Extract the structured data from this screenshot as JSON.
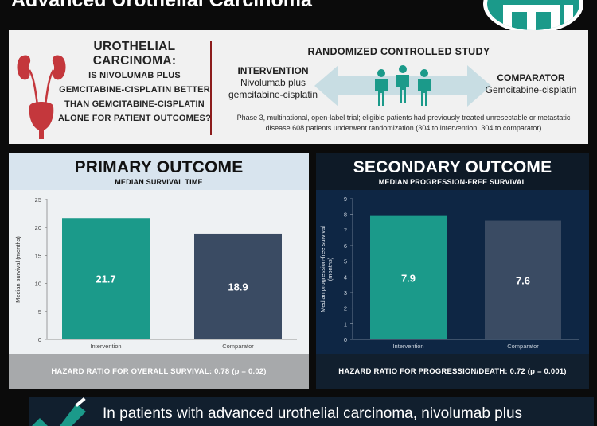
{
  "header": {
    "title": "Advanced Urothelial Carcinoma"
  },
  "study": {
    "question_title": "UROTHELIAL CARCINOMA:",
    "question_body": "IS NIVOLUMAB PLUS GEMCITABINE-CISPLATIN BETTER THAN GEMCITABINE-CISPLATIN ALONE FOR PATIENT OUTCOMES?",
    "design_label": "RANDOMIZED CONTROLLED STUDY",
    "intervention_label": "INTERVENTION",
    "intervention_text": "Nivolumab plus gemcitabine-cisplatin",
    "comparator_label": "COMPARATOR",
    "comparator_text": "Gemcitabine-cisplatin",
    "description": "Phase 3, multinational, open-label trial; eligible patients had previously treated unresectable or metastatic disease 608 patients underwent randomization (304 to intervention, 304 to comparator)"
  },
  "primary": {
    "title": "PRIMARY OUTCOME",
    "subtitle": "MEDIAN SURVIVAL TIME",
    "footer": "HAZARD RATIO FOR OVERALL SURVIVAL: 0.78 (p = 0.02)"
  },
  "secondary": {
    "title": "SECONDARY OUTCOME",
    "subtitle": "MEDIAN PROGRESSION-FREE SURVIVAL",
    "footer": "HAZARD RATIO FOR PROGRESSION/DEATH: 0.72 (p = 0.001)"
  },
  "conclusion": {
    "text": "In patients with advanced urothelial carcinoma, nivolumab plus"
  },
  "colors": {
    "brand_teal": "#1b9a8a",
    "bar_intervention": "#1b9a8a",
    "bar_comparator": "#3a4b63",
    "kidney": "#c4373c",
    "navy": "#111f2e"
  },
  "chart_data": [
    {
      "type": "bar",
      "categories": [
        "Intervention",
        "Comparator"
      ],
      "values": [
        21.7,
        18.9
      ],
      "value_labels": [
        "21.7",
        "18.9"
      ],
      "title": "",
      "xlabel": "",
      "ylabel": "Median survival (months)",
      "ylim": [
        0,
        25
      ],
      "yticks": [
        0,
        5,
        10,
        15,
        20,
        25
      ],
      "grid": false,
      "colors": [
        "#1b9a8a",
        "#3a4b63"
      ]
    },
    {
      "type": "bar",
      "categories": [
        "Intervention",
        "Comparator"
      ],
      "values": [
        7.9,
        7.6
      ],
      "value_labels": [
        "7.9",
        "7.6"
      ],
      "title": "",
      "xlabel": "",
      "ylabel": "Median progression-free survival (months)",
      "ylim": [
        0,
        9
      ],
      "yticks": [
        0,
        1,
        2,
        3,
        4,
        5,
        6,
        7,
        8,
        9
      ],
      "grid": false,
      "colors": [
        "#1b9a8a",
        "#3a4b63"
      ]
    }
  ]
}
